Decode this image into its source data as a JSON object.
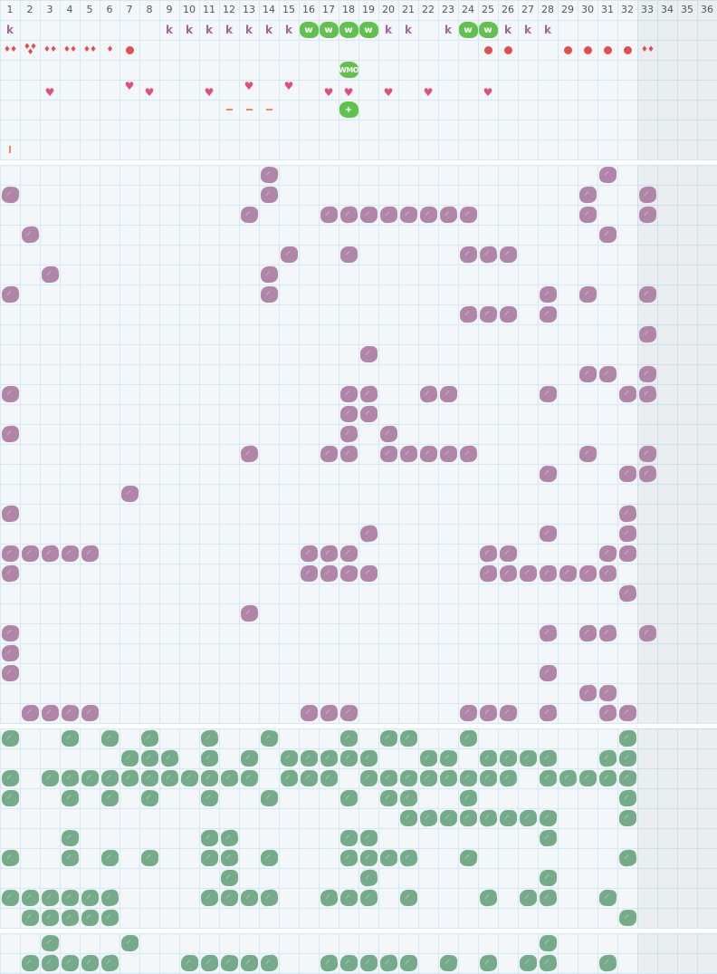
{
  "colors": {
    "purple": "#b085a8",
    "green": "#76ab8a",
    "bright_green": "#62c14e",
    "k": "#a0689a",
    "red": "#e05050",
    "heart": "#e0507a",
    "dash": "#f08a5a"
  },
  "columns": [
    "1",
    "2",
    "3",
    "4",
    "5",
    "6",
    "7",
    "8",
    "9",
    "10",
    "11",
    "12",
    "13",
    "14",
    "15",
    "16",
    "17",
    "18",
    "19",
    "20",
    "21",
    "22",
    "23",
    "24",
    "25",
    "26",
    "27",
    "28",
    "29",
    "30",
    "31",
    "32",
    "33",
    "34",
    "35",
    "36"
  ],
  "top_rows": [
    [
      {
        "col": 1,
        "icon": "k",
        "text": "k"
      },
      {
        "col": 9,
        "icon": "k",
        "text": "k"
      },
      {
        "col": 10,
        "icon": "k",
        "text": "k"
      },
      {
        "col": 11,
        "icon": "k",
        "text": "k"
      },
      {
        "col": 12,
        "icon": "k",
        "text": "k"
      },
      {
        "col": 13,
        "icon": "k",
        "text": "k"
      },
      {
        "col": 14,
        "icon": "k",
        "text": "k"
      },
      {
        "col": 15,
        "icon": "k",
        "text": "k"
      },
      {
        "col": 16,
        "icon": "w",
        "text": "w"
      },
      {
        "col": 17,
        "icon": "w",
        "text": "w"
      },
      {
        "col": 18,
        "icon": "w",
        "text": "w"
      },
      {
        "col": 19,
        "icon": "w",
        "text": "w"
      },
      {
        "col": 20,
        "icon": "k",
        "text": "k"
      },
      {
        "col": 21,
        "icon": "k",
        "text": "k"
      },
      {
        "col": 23,
        "icon": "k",
        "text": "k"
      },
      {
        "col": 24,
        "icon": "w",
        "text": "w"
      },
      {
        "col": 25,
        "icon": "w",
        "text": "w"
      },
      {
        "col": 26,
        "icon": "k",
        "text": "k"
      },
      {
        "col": 27,
        "icon": "k",
        "text": "k"
      },
      {
        "col": 28,
        "icon": "k",
        "text": "k"
      }
    ],
    [
      {
        "col": 1,
        "icon": "drops-2"
      },
      {
        "col": 2,
        "icon": "drops-3"
      },
      {
        "col": 3,
        "icon": "drops-2"
      },
      {
        "col": 4,
        "icon": "drops-2"
      },
      {
        "col": 5,
        "icon": "drops-2"
      },
      {
        "col": 6,
        "icon": "drop-1"
      },
      {
        "col": 7,
        "icon": "dot"
      },
      {
        "col": 25,
        "icon": "dot"
      },
      {
        "col": 26,
        "icon": "dot"
      },
      {
        "col": 29,
        "icon": "dot"
      },
      {
        "col": 30,
        "icon": "dot"
      },
      {
        "col": 31,
        "icon": "dot"
      },
      {
        "col": 32,
        "icon": "dot"
      },
      {
        "col": 33,
        "icon": "drops-2"
      }
    ],
    [
      {
        "col": 18,
        "icon": "w",
        "text": "WMO"
      }
    ],
    [
      {
        "col": 3,
        "icon": "heart"
      },
      {
        "col": 7,
        "icon": "heart-high"
      },
      {
        "col": 8,
        "icon": "heart"
      },
      {
        "col": 11,
        "icon": "heart"
      },
      {
        "col": 13,
        "icon": "heart-high"
      },
      {
        "col": 15,
        "icon": "heart-high"
      },
      {
        "col": 17,
        "icon": "heart"
      },
      {
        "col": 18,
        "icon": "heart"
      },
      {
        "col": 20,
        "icon": "heart"
      },
      {
        "col": 22,
        "icon": "heart"
      },
      {
        "col": 25,
        "icon": "heart"
      }
    ],
    [
      {
        "col": 12,
        "icon": "dash"
      },
      {
        "col": 13,
        "icon": "dash"
      },
      {
        "col": 14,
        "icon": "dash"
      },
      {
        "col": 18,
        "icon": "w",
        "text": "+"
      }
    ],
    [],
    [
      {
        "col": 1,
        "icon": "bar"
      }
    ]
  ],
  "sections": [
    {
      "color": "purple",
      "rows": [
        [
          14,
          31
        ],
        [
          1,
          14,
          30,
          33
        ],
        [
          13,
          17,
          18,
          19,
          20,
          21,
          22,
          23,
          24,
          30,
          33
        ],
        [
          2,
          31
        ],
        [
          15,
          18,
          24,
          25,
          26
        ],
        [
          3,
          14
        ],
        [
          1,
          14,
          28,
          30,
          33
        ],
        [
          24,
          25,
          26,
          28
        ],
        [
          33
        ],
        [
          19
        ],
        [
          30,
          31,
          33
        ],
        [
          1,
          18,
          19,
          22,
          23,
          28,
          32,
          33
        ],
        [
          18,
          19
        ],
        [
          1,
          18,
          20
        ],
        [
          13,
          17,
          18,
          20,
          21,
          22,
          23,
          24,
          30,
          33
        ],
        [
          28,
          32,
          33
        ],
        [
          7
        ],
        [
          1,
          32
        ],
        [
          19,
          28,
          32
        ],
        [
          1,
          2,
          3,
          4,
          5,
          16,
          17,
          18,
          25,
          26,
          31,
          32
        ],
        [
          1,
          16,
          17,
          18,
          19,
          25,
          26,
          27,
          28,
          29,
          30,
          31
        ],
        [
          32
        ],
        [
          13
        ],
        [
          1,
          28,
          30,
          31,
          33
        ],
        [
          1
        ],
        [
          1,
          28
        ],
        [
          30,
          31
        ],
        [
          2,
          3,
          4,
          5,
          16,
          17,
          18,
          24,
          25,
          26,
          28,
          31,
          32
        ]
      ]
    },
    {
      "color": "green",
      "rows": [
        [
          1,
          4,
          6,
          8,
          11,
          14,
          18,
          20,
          21,
          24,
          32
        ],
        [
          7,
          8,
          9,
          11,
          13,
          15,
          16,
          17,
          18,
          19,
          22,
          23,
          25,
          26,
          27,
          28,
          31,
          32
        ],
        [
          1,
          3,
          4,
          5,
          6,
          7,
          8,
          9,
          10,
          11,
          12,
          13,
          15,
          16,
          17,
          19,
          20,
          21,
          22,
          23,
          24,
          25,
          26,
          28,
          29,
          30,
          31,
          32
        ],
        [
          1,
          4,
          6,
          8,
          11,
          14,
          18,
          20,
          21,
          24,
          32
        ],
        [
          21,
          22,
          23,
          24,
          25,
          26,
          27,
          28,
          32
        ],
        [
          4,
          11,
          12,
          18,
          19,
          28
        ],
        [
          1,
          4,
          6,
          8,
          11,
          12,
          14,
          18,
          19,
          20,
          21,
          24,
          32
        ],
        [
          12,
          19,
          28
        ],
        [
          1,
          2,
          3,
          4,
          5,
          6,
          11,
          12,
          13,
          14,
          17,
          18,
          19,
          21,
          25,
          27,
          28,
          31
        ],
        [
          2,
          3,
          4,
          5,
          6,
          32
        ]
      ]
    },
    {
      "color": "green",
      "rows": [
        [
          3,
          7,
          28
        ],
        [
          2,
          3,
          4,
          5,
          6,
          10,
          11,
          12,
          13,
          14,
          17,
          18,
          19,
          20,
          21,
          23,
          25,
          27,
          28,
          31
        ]
      ]
    }
  ]
}
